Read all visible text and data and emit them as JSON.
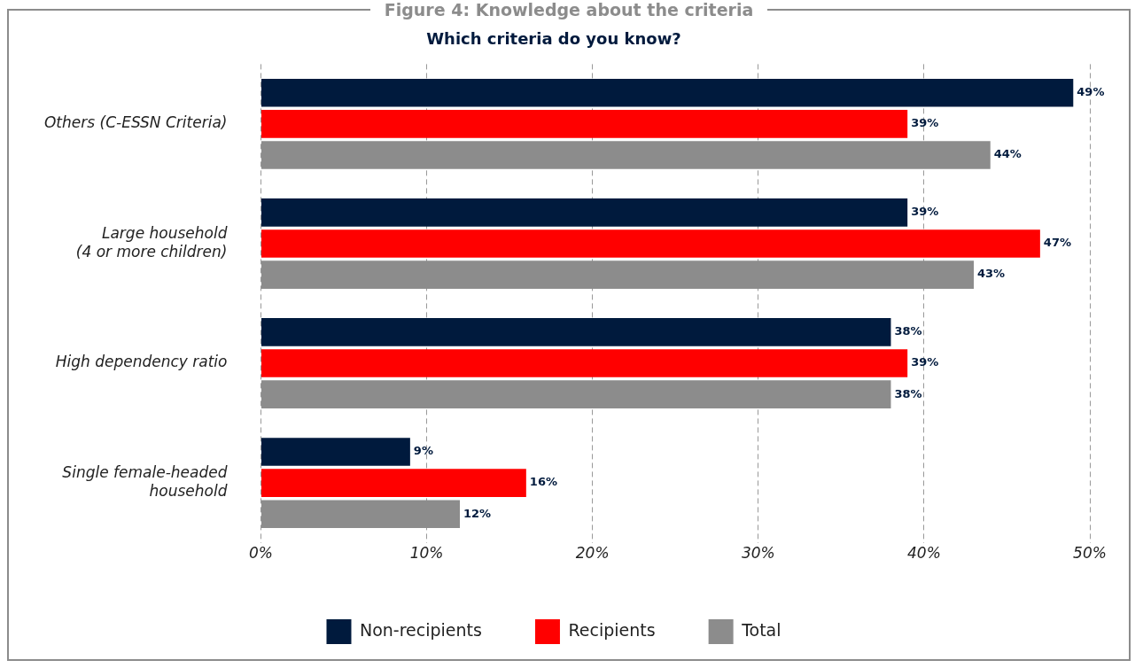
{
  "chart_data": {
    "type": "bar",
    "orientation": "horizontal",
    "title": "Figure 4: Knowledge about the criteria",
    "subtitle": "Which criteria do you know?",
    "categories": [
      "Others (C-ESSN Criteria)",
      "Large household\n(4 or more children)",
      "High dependency ratio",
      "Single female-headed\nhousehold"
    ],
    "series": [
      {
        "name": "Non-recipients",
        "color": "#001a3d",
        "values": [
          49,
          39,
          38,
          9
        ],
        "value_labels": [
          "49%",
          "39%",
          "38%",
          "9%"
        ]
      },
      {
        "name": "Recipients",
        "color": "#ff0000",
        "values": [
          39,
          47,
          39,
          16
        ],
        "value_labels": [
          "39%",
          "47%",
          "39%",
          "16%"
        ]
      },
      {
        "name": "Total",
        "color": "#8c8c8c",
        "values": [
          44,
          43,
          38,
          12
        ],
        "value_labels": [
          "44%",
          "43%",
          "38%",
          "12%"
        ]
      }
    ],
    "xlim": [
      0,
      50
    ],
    "xticks": [
      {
        "value": 0,
        "label": "0%"
      },
      {
        "value": 10,
        "label": "10%"
      },
      {
        "value": 20,
        "label": "20%"
      },
      {
        "value": 30,
        "label": "30%"
      },
      {
        "value": 40,
        "label": "40%"
      },
      {
        "value": 50,
        "label": "50%"
      }
    ],
    "grid": "x",
    "legend": "bottom"
  }
}
